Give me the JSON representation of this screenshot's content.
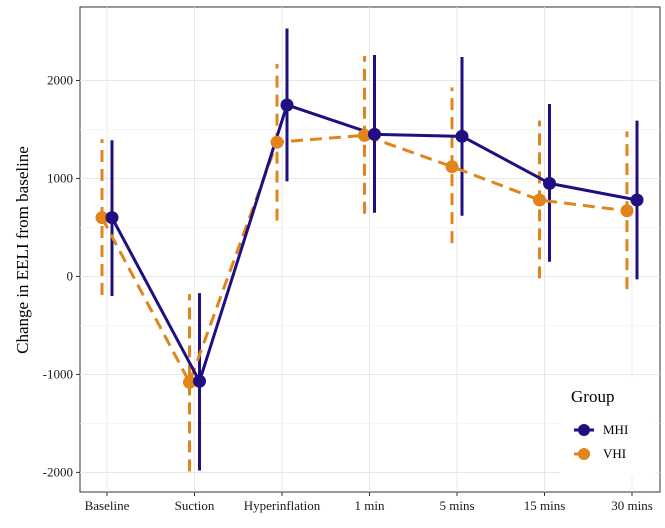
{
  "chart_data": {
    "type": "line",
    "title": "",
    "xlabel": "",
    "ylabel": "Change in EELI from baseline",
    "categories": [
      "Baseline",
      "Suction",
      "Hyperinflation",
      "1 min",
      "5 mins",
      "15 mins",
      "30 mins"
    ],
    "ylim": [
      -2200,
      2750
    ],
    "yticks": [
      -2000,
      -1000,
      0,
      1000,
      2000
    ],
    "grid": true,
    "legend": {
      "title": "Group",
      "placement": "bottom-right"
    },
    "series": [
      {
        "name": "MHI",
        "color": "#1f0f80",
        "line_style": "solid",
        "values": [
          600,
          -1070,
          1750,
          1450,
          1430,
          950,
          780
        ],
        "lower": [
          -200,
          -1980,
          970,
          650,
          620,
          150,
          -30
        ],
        "upper": [
          1390,
          -170,
          2530,
          2260,
          2240,
          1760,
          1590
        ]
      },
      {
        "name": "VHI",
        "color": "#e0841b",
        "line_style": "dashed",
        "values": [
          600,
          -1080,
          1370,
          1440,
          1120,
          780,
          670
        ],
        "lower": [
          -190,
          -1990,
          570,
          640,
          340,
          -20,
          -130
        ],
        "upper": [
          1400,
          -180,
          2170,
          2250,
          1930,
          1590,
          1480
        ]
      }
    ]
  }
}
